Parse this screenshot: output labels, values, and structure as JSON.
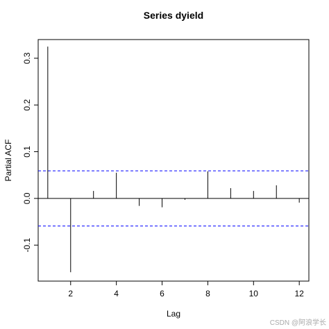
{
  "chart_data": {
    "type": "acf",
    "title": "Series  dyield",
    "xlabel": "Lag",
    "ylabel": "Partial ACF",
    "x": [
      1,
      2,
      3,
      4,
      5,
      6,
      7,
      8,
      9,
      10,
      11,
      12
    ],
    "values": [
      0.325,
      -0.158,
      0.016,
      0.055,
      -0.016,
      -0.019,
      -0.003,
      0.058,
      0.022,
      0.016,
      0.028,
      -0.009
    ],
    "color": "#000000",
    "conf_limit": 0.059,
    "conf_color": "#0000ff",
    "xlim": [
      0.58,
      12.42
    ],
    "ylim": [
      -0.177,
      0.34
    ],
    "xticks": [
      2,
      4,
      6,
      8,
      10,
      12
    ],
    "yticks": [
      -0.1,
      {
        "value": 0,
        "label": "0.0"
      },
      0.1,
      0.2,
      0.3
    ],
    "watermark": "CSDN @阿浪学长"
  }
}
